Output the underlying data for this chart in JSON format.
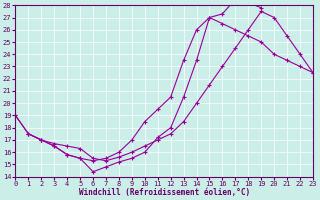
{
  "xlabel": "Windchill (Refroidissement éolien,°C)",
  "bg_color": "#cceee8",
  "line_color": "#990099",
  "xlim": [
    0,
    23
  ],
  "ylim": [
    14,
    28
  ],
  "xticks": [
    0,
    1,
    2,
    3,
    4,
    5,
    6,
    7,
    8,
    9,
    10,
    11,
    12,
    13,
    14,
    15,
    16,
    17,
    18,
    19,
    20,
    21,
    22,
    23
  ],
  "yticks": [
    14,
    15,
    16,
    17,
    18,
    19,
    20,
    21,
    22,
    23,
    24,
    25,
    26,
    27,
    28
  ],
  "series1_x": [
    0,
    1,
    2,
    3,
    4,
    5,
    6,
    7,
    8,
    9,
    10,
    11,
    12,
    13,
    14,
    15,
    16,
    17,
    18,
    19
  ],
  "series1_y": [
    19,
    17.5,
    17.0,
    16.5,
    15.8,
    15.5,
    14.4,
    14.8,
    15.2,
    15.5,
    16.0,
    17.2,
    18.0,
    20.5,
    23.5,
    27.0,
    27.3,
    28.5,
    28.2,
    27.8
  ],
  "series2_x": [
    0,
    1,
    2,
    3,
    4,
    5,
    6,
    7,
    8,
    9,
    10,
    11,
    12,
    13,
    14,
    15,
    16,
    17,
    18,
    19,
    20,
    21,
    22,
    23
  ],
  "series2_y": [
    19.0,
    17.5,
    17.0,
    16.5,
    15.8,
    15.5,
    15.3,
    15.5,
    16.0,
    17.0,
    18.5,
    19.5,
    20.5,
    23.5,
    26.0,
    27.0,
    26.5,
    26.0,
    25.5,
    25.0,
    24.0,
    23.5,
    23.0,
    22.5
  ],
  "series3_x": [
    1,
    2,
    3,
    4,
    5,
    6,
    7,
    8,
    9,
    10,
    11,
    12,
    13,
    14,
    15,
    16,
    17,
    18,
    19,
    20,
    21,
    22,
    23
  ],
  "series3_y": [
    17.5,
    17.0,
    16.7,
    16.5,
    16.3,
    15.5,
    15.3,
    15.6,
    16.0,
    16.5,
    17.0,
    17.5,
    18.5,
    20.0,
    21.5,
    23.0,
    24.5,
    26.0,
    27.5,
    27.0,
    25.5,
    24.0,
    22.5
  ]
}
